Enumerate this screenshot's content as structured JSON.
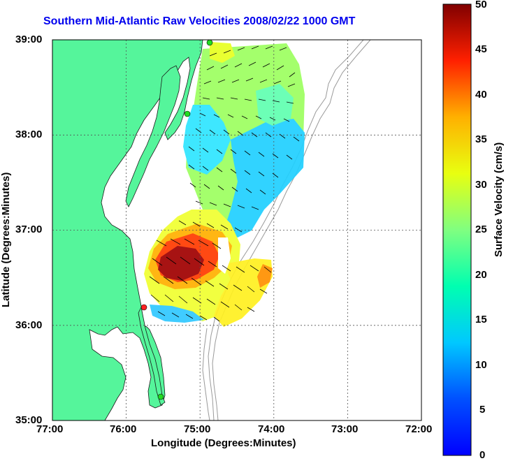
{
  "title": "Southern Mid-Atlantic Raw Velocities 2008/02/22 1000 GMT",
  "x_axis": {
    "label": "Longitude (Degrees:Minutes)",
    "ticks": [
      "77:00",
      "76:00",
      "75:00",
      "74:00",
      "73:00",
      "72:00"
    ]
  },
  "y_axis": {
    "label": "Latitude (Degrees:Minutes)",
    "ticks": [
      "39:00",
      "38:00",
      "37:00",
      "36:00",
      "35:00"
    ]
  },
  "colorbar": {
    "label": "Surface Velocity (cm/s)",
    "ticks": [
      "50",
      "45",
      "40",
      "35",
      "30",
      "25",
      "20",
      "15",
      "10",
      "5",
      "0"
    ],
    "range": [
      0,
      50
    ],
    "colormap": "jet"
  },
  "colors": {
    "title": "#0000ee",
    "land": "#55f59b",
    "bathymetry": "#9a9a9a",
    "station_active": "#22dd22",
    "station_alert": "#ff2222"
  }
}
